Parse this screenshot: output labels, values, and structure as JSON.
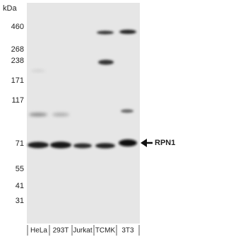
{
  "unit": "kDa",
  "markers": [
    "460",
    "268",
    "238",
    "171",
    "117",
    "71",
    "55",
    "41",
    "31"
  ],
  "lanes": [
    "HeLa",
    "293T",
    "Jurkat",
    "TCMK",
    "3T3"
  ],
  "target": "RPN1"
}
